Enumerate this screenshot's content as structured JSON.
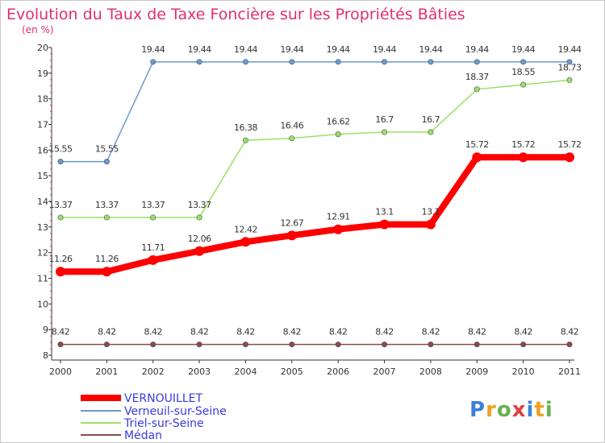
{
  "chart_data": {
    "type": "line",
    "title": "Evolution du Taux de Taxe Foncière sur les Propriétés Bâties",
    "subtitle": "(en %)",
    "xlabel": "",
    "ylabel": "",
    "categories": [
      "2000",
      "2001",
      "2002",
      "2003",
      "2004",
      "2005",
      "2006",
      "2007",
      "2008",
      "2009",
      "2010",
      "2011"
    ],
    "ylim": [
      8,
      20
    ],
    "yticks": [
      8,
      9,
      10,
      11,
      12,
      13,
      14,
      15,
      16,
      17,
      18,
      19,
      20
    ],
    "grid": false,
    "series": [
      {
        "name": "VERNOUILLET",
        "color": "#ff0000",
        "values": [
          11.26,
          11.26,
          11.71,
          12.06,
          12.42,
          12.67,
          12.91,
          13.1,
          13.1,
          15.72,
          15.72,
          15.72
        ],
        "labels": [
          "11.26",
          "11.26",
          "11.71",
          "12.06",
          "12.42",
          "12.67",
          "12.91",
          "13.1",
          "13.1",
          "15.72",
          "15.72",
          "15.72"
        ]
      },
      {
        "name": "Verneuil-sur-Seine",
        "color": "#6b9ad0",
        "values": [
          15.55,
          15.55,
          19.44,
          19.44,
          19.44,
          19.44,
          19.44,
          19.44,
          19.44,
          19.44,
          19.44,
          19.44
        ],
        "labels": [
          "15.55",
          "15.55",
          "19.44",
          "19.44",
          "19.44",
          "19.44",
          "19.44",
          "19.44",
          "19.44",
          "19.44",
          "19.44",
          "19.44"
        ]
      },
      {
        "name": "Triel-sur-Seine",
        "color": "#99e066",
        "values": [
          13.37,
          13.37,
          13.37,
          13.37,
          16.38,
          16.46,
          16.62,
          16.7,
          16.7,
          18.37,
          18.55,
          18.73
        ],
        "labels": [
          "13.37",
          "13.37",
          "13.37",
          "13.37",
          "16.38",
          "16.46",
          "16.62",
          "16.7",
          "16.7",
          "18.37",
          "18.55",
          "18.73"
        ]
      },
      {
        "name": "Médan",
        "color": "#8b4a4a",
        "values": [
          8.42,
          8.42,
          8.42,
          8.42,
          8.42,
          8.42,
          8.42,
          8.42,
          8.42,
          8.42,
          8.42,
          8.42
        ],
        "labels": [
          "8.42",
          "8.42",
          "8.42",
          "8.42",
          "8.42",
          "8.42",
          "8.42",
          "8.42",
          "8.42",
          "8.42",
          "8.42",
          "8.42"
        ]
      }
    ]
  },
  "logo": {
    "text": "Proxiti"
  },
  "colors": {
    "title": "#e0306a",
    "axis": "#333333",
    "tick_minor": "#e0306a",
    "legend_text": "#3a3adf"
  }
}
